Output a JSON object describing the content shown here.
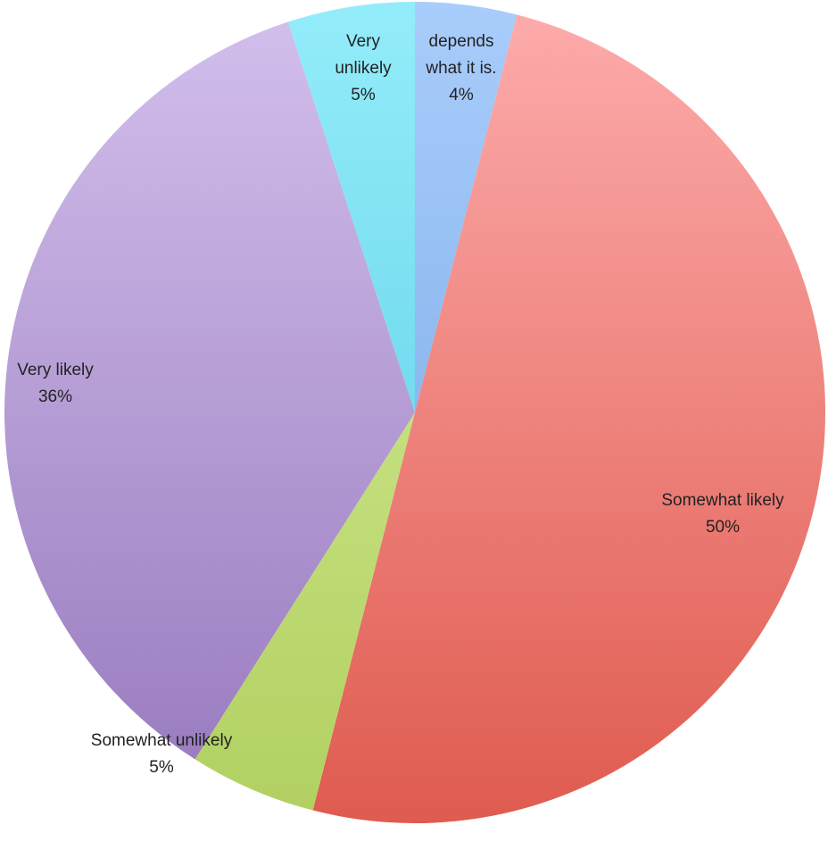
{
  "chart_data": {
    "type": "pie",
    "title": "",
    "start_angle_deg": 0,
    "direction": "clockwise",
    "legend": "none",
    "slices": [
      {
        "name": "depends what it is.",
        "value": 4,
        "display": "4%",
        "label_lines": [
          "depends",
          "what it is."
        ],
        "color_light": "#a9cdfb",
        "color_dark": "#6ea2e2"
      },
      {
        "name": "Somewhat likely",
        "value": 50,
        "display": "50%",
        "label_lines": [
          "Somewhat likely"
        ],
        "color_light": "#fdacac",
        "color_dark": "#df5b4f"
      },
      {
        "name": "Somewhat unlikely",
        "value": 5,
        "display": "5%",
        "label_lines": [
          "Somewhat unlikely"
        ],
        "color_light": "#d9f09e",
        "color_dark": "#b1d060"
      },
      {
        "name": "Very likely",
        "value": 36,
        "display": "36%",
        "label_lines": [
          "Very likely"
        ],
        "color_light": "#d3c0ec",
        "color_dark": "#9678bd"
      },
      {
        "name": "Very unlikely",
        "value": 5,
        "display": "5%",
        "label_lines": [
          "Very",
          "unlikely"
        ],
        "color_light": "#94ecfa",
        "color_dark": "#4fcbe2"
      }
    ]
  }
}
